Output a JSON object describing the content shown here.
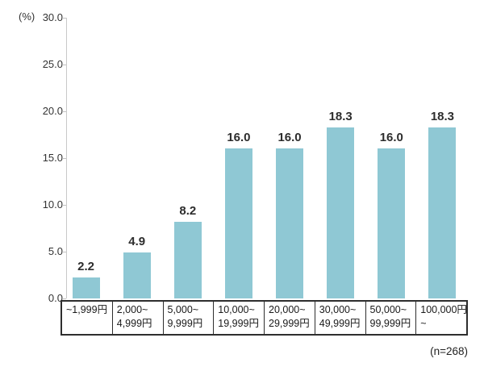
{
  "chart_data": {
    "type": "bar",
    "title": "",
    "ylabel": "(%)",
    "ylim": [
      0,
      30
    ],
    "ytick_step": 5,
    "yticks": [
      "30.0",
      "25.0",
      "20.0",
      "15.0",
      "10.0",
      "5.0",
      "0.0"
    ],
    "grid": false,
    "legend_position": "none",
    "bar_color": "#8FC8D4",
    "categories": [
      [
        "~1,999円"
      ],
      [
        "2,000~",
        "4,999円"
      ],
      [
        "5,000~",
        "9,999円"
      ],
      [
        "10,000~",
        "19,999円"
      ],
      [
        "20,000~",
        "29,999円"
      ],
      [
        "30,000~",
        "49,999円"
      ],
      [
        "50,000~",
        "99,999円"
      ],
      [
        "100,000円",
        "~"
      ]
    ],
    "values": [
      2.2,
      4.9,
      8.2,
      16.0,
      16.0,
      18.3,
      16.0,
      18.3
    ],
    "value_labels": [
      "2.2",
      "4.9",
      "8.2",
      "16.0",
      "16.0",
      "18.3",
      "16.0",
      "18.3"
    ]
  },
  "footer": {
    "sample_note": "(n=268)"
  }
}
